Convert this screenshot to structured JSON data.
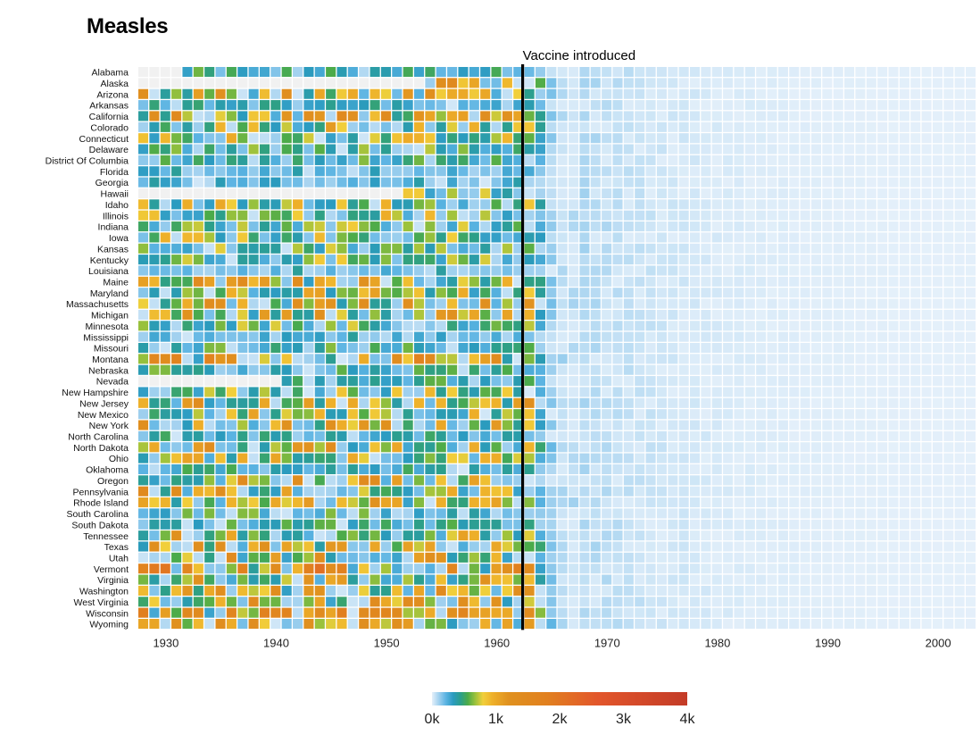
{
  "chart_data": {
    "type": "heatmap",
    "title": "Measles",
    "x_range": [
      1928,
      2003
    ],
    "xticks": [
      "1930",
      "1940",
      "1950",
      "1960",
      "1970",
      "1980",
      "1990",
      "2000"
    ],
    "states": [
      "Alabama",
      "Alaska",
      "Arizona",
      "Arkansas",
      "California",
      "Colorado",
      "Connecticut",
      "Delaware",
      "District Of Columbia",
      "Florida",
      "Georgia",
      "Hawaii",
      "Idaho",
      "Illinois",
      "Indiana",
      "Iowa",
      "Kansas",
      "Kentucky",
      "Louisiana",
      "Maine",
      "Maryland",
      "Massachusetts",
      "Michigan",
      "Minnesota",
      "Mississippi",
      "Missouri",
      "Montana",
      "Nebraska",
      "Nevada",
      "New Hampshire",
      "New Jersey",
      "New Mexico",
      "New York",
      "North Carolina",
      "North Dakota",
      "Ohio",
      "Oklahoma",
      "Oregon",
      "Pennsylvania",
      "Rhode Island",
      "South Carolina",
      "South Dakota",
      "Tennessee",
      "Texas",
      "Utah",
      "Vermont",
      "Virginia",
      "Washington",
      "West Virginia",
      "Wisconsin",
      "Wyoming"
    ],
    "annotation": {
      "label": "Vaccine introduced",
      "x": 1963
    },
    "legend": {
      "ticks": [
        {
          "value": 0,
          "label": "0k"
        },
        {
          "value": 1000,
          "label": "1k"
        },
        {
          "value": 2000,
          "label": "2k"
        },
        {
          "value": 3000,
          "label": "3k"
        },
        {
          "value": 4000,
          "label": "4k"
        }
      ],
      "max": 4000
    },
    "color_scale": [
      {
        "value": 0,
        "color": "#e5f0fa"
      },
      {
        "value": 100,
        "color": "#a6d3f0"
      },
      {
        "value": 220,
        "color": "#5ab3e2"
      },
      {
        "value": 330,
        "color": "#2b9bc0"
      },
      {
        "value": 450,
        "color": "#2c9f8a"
      },
      {
        "value": 560,
        "color": "#4cab49"
      },
      {
        "value": 680,
        "color": "#9cc23c"
      },
      {
        "value": 800,
        "color": "#f1cf3b"
      },
      {
        "value": 950,
        "color": "#eeb02a"
      },
      {
        "value": 1200,
        "color": "#e0911f"
      },
      {
        "value": 1800,
        "color": "#e1801f"
      },
      {
        "value": 2600,
        "color": "#e2562b"
      },
      {
        "value": 4000,
        "color": "#c33b27"
      }
    ],
    "missing_color": "#f1f1f1",
    "data_summary": {
      "start": {
        "Alabama": 1932,
        "Alaska": 1954,
        "Arizona": 1928,
        "Arkansas": 1928,
        "California": 1928,
        "Colorado": 1928,
        "Connecticut": 1928,
        "Delaware": 1928,
        "District Of Columbia": 1928,
        "Florida": 1928,
        "Georgia": 1928,
        "Hawaii": 1952,
        "Idaho": 1928,
        "Illinois": 1928,
        "Indiana": 1928,
        "Iowa": 1928,
        "Kansas": 1928,
        "Kentucky": 1928,
        "Louisiana": 1928,
        "Maine": 1928,
        "Maryland": 1928,
        "Massachusetts": 1928,
        "Michigan": 1928,
        "Minnesota": 1928,
        "Mississippi": 1928,
        "Missouri": 1928,
        "Montana": 1928,
        "Nebraska": 1928,
        "Nevada": 1941,
        "New Hampshire": 1928,
        "New Jersey": 1928,
        "New Mexico": 1928,
        "New York": 1928,
        "North Carolina": 1928,
        "North Dakota": 1928,
        "Ohio": 1928,
        "Oklahoma": 1928,
        "Oregon": 1928,
        "Pennsylvania": 1928,
        "Rhode Island": 1928,
        "South Carolina": 1928,
        "South Dakota": 1928,
        "Tennessee": 1928,
        "Texas": 1928,
        "Utah": 1928,
        "Vermont": 1928,
        "Virginia": 1928,
        "Washington": 1928,
        "West Virginia": 1928,
        "Wisconsin": 1928,
        "Wyoming": 1928
      },
      "pre_vaccine_level": {
        "Alabama": 0.55,
        "Alaska": 1.6,
        "Arizona": 1.25,
        "Arkansas": 0.45,
        "California": 1.3,
        "Colorado": 1.05,
        "Connecticut": 0.95,
        "Delaware": 0.7,
        "District Of Columbia": 0.6,
        "Florida": 0.35,
        "Georgia": 0.3,
        "Hawaii": 0.8,
        "Idaho": 0.95,
        "Illinois": 0.9,
        "Indiana": 0.75,
        "Iowa": 0.85,
        "Kansas": 0.7,
        "Kentucky": 0.8,
        "Louisiana": 0.25,
        "Maine": 1.3,
        "Maryland": 1.0,
        "Massachusetts": 1.3,
        "Michigan": 1.15,
        "Minnesota": 0.7,
        "Mississippi": 0.3,
        "Missouri": 0.6,
        "Montana": 1.6,
        "Nebraska": 0.6,
        "Nevada": 0.6,
        "New Hampshire": 0.9,
        "New Jersey": 1.25,
        "New Mexico": 1.0,
        "New York": 1.15,
        "North Carolina": 0.5,
        "North Dakota": 1.25,
        "Ohio": 1.0,
        "Oklahoma": 0.5,
        "Oregon": 1.3,
        "Pennsylvania": 1.3,
        "Rhode Island": 1.1,
        "South Carolina": 0.6,
        "South Dakota": 0.55,
        "Tennessee": 1.1,
        "Texas": 1.25,
        "Utah": 1.35,
        "Vermont": 1.9,
        "Virginia": 1.2,
        "Washington": 1.35,
        "West Virginia": 1.35,
        "Wisconsin": 1.7,
        "Wyoming": 1.35
      }
    }
  }
}
